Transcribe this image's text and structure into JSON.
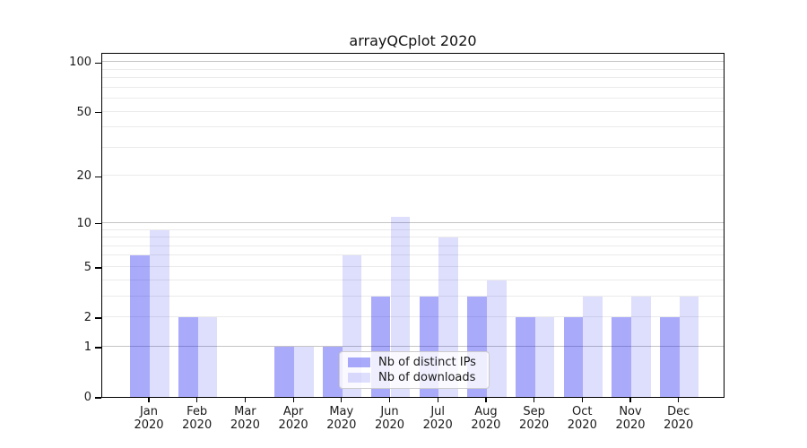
{
  "title": "arrayQCplot 2020",
  "chart_data": {
    "type": "bar",
    "title": "arrayQCplot 2020",
    "categories": [
      "Jan 2020",
      "Feb 2020",
      "Mar 2020",
      "Apr 2020",
      "May 2020",
      "Jun 2020",
      "Jul 2020",
      "Aug 2020",
      "Sep 2020",
      "Oct 2020",
      "Nov 2020",
      "Dec 2020"
    ],
    "series": [
      {
        "name": "Nb of distinct IPs",
        "color": "#0a0af0",
        "alpha": 0.345,
        "values": [
          6,
          2,
          0,
          1,
          1,
          3,
          3,
          3,
          2,
          2,
          2,
          2
        ]
      },
      {
        "name": "Nb of downloads",
        "color": "#0a0af0",
        "alpha": 0.135,
        "values": [
          9,
          2,
          0,
          1,
          6,
          11,
          8,
          4,
          2,
          3,
          3,
          3
        ]
      }
    ],
    "xlabel": "",
    "ylabel": "",
    "yscale": "log1p",
    "yticks": [
      0,
      1,
      2,
      5,
      10,
      20,
      50,
      100
    ],
    "minor_gridline_values": [
      2,
      3,
      4,
      5,
      6,
      7,
      8,
      9,
      20,
      30,
      40,
      50,
      60,
      70,
      80,
      90
    ],
    "major_gridline_values": [
      1,
      10,
      100
    ],
    "ylim": [
      0,
      116
    ],
    "grid": "horizontal",
    "legend_position": "inside-bottom-center",
    "bar_layout": "pair per month: distinct IPs left, downloads right"
  },
  "colors": {
    "bar_distinct_ips_rendered": "#aaaaf9",
    "bar_downloads_rendered": "#dcdcfc",
    "major_grid": "#c4c4c4",
    "minor_grid": "#ebebeb",
    "axis": "#000000",
    "text": "#1a1a1a",
    "legend_border": "#cccccc",
    "legend_background": "#ffffff"
  }
}
